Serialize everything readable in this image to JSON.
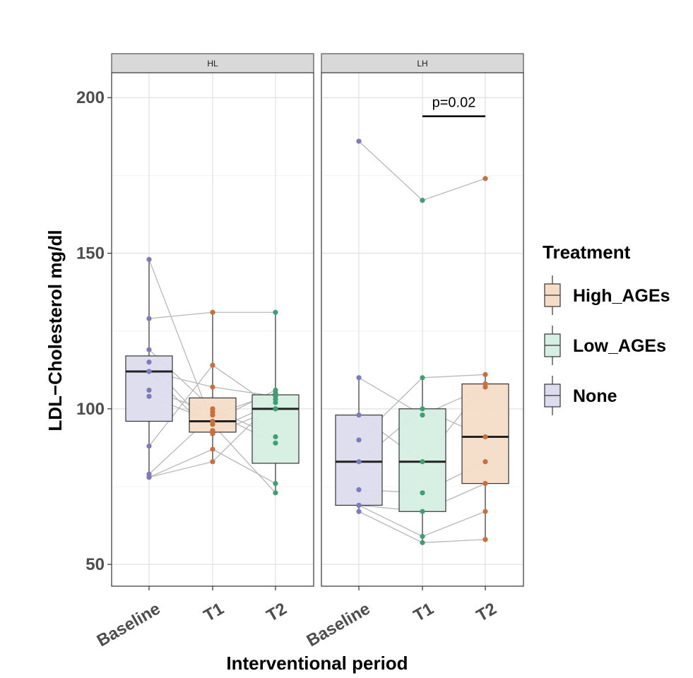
{
  "chart_data": {
    "type": "boxplot",
    "ylabel": "LDL−Cholesterol mg/dl",
    "xlabel": "Interventional period",
    "ylim": [
      43,
      208
    ],
    "yticks": [
      50,
      100,
      150,
      200
    ],
    "categories": [
      "Baseline",
      "T1",
      "T2"
    ],
    "legend": {
      "title": "Treatment",
      "entries": [
        {
          "name": "High_AGEs",
          "fill": "#f4dcc7",
          "point": "#c8703c"
        },
        {
          "name": "Low_AGEs",
          "fill": "#d6efe3",
          "point": "#3f9e73"
        },
        {
          "name": "None",
          "fill": "#dcdcee",
          "point": "#7b7bbd"
        }
      ]
    },
    "panels": [
      {
        "label": "HL",
        "boxes": [
          {
            "category": "Baseline",
            "treatment": "None",
            "lower": 78,
            "q1": 96,
            "median": 112,
            "q3": 117,
            "upper": 148
          },
          {
            "category": "T1",
            "treatment": "High_AGEs",
            "lower": 83,
            "q1": 92.5,
            "median": 96,
            "q3": 103.5,
            "upper": 131
          },
          {
            "category": "T2",
            "treatment": "Low_AGEs",
            "lower": 73,
            "q1": 82.5,
            "median": 100,
            "q3": 104.5,
            "upper": 131
          }
        ],
        "subjects": [
          [
            148,
            95,
            73
          ],
          [
            129,
            131,
            131
          ],
          [
            119,
            100,
            91
          ],
          [
            115,
            93,
            102
          ],
          [
            112,
            107,
            104
          ],
          [
            106,
            99,
            89
          ],
          [
            104,
            96,
            106
          ],
          [
            88,
            114,
            100
          ],
          [
            79,
            98,
            105
          ],
          [
            78,
            87,
            76
          ],
          [
            78,
            83,
            103
          ],
          [
            112,
            92,
            100
          ]
        ],
        "annotation": null
      },
      {
        "label": "LH",
        "boxes": [
          {
            "category": "Baseline",
            "treatment": "None",
            "lower": 67,
            "q1": 69,
            "median": 83,
            "q3": 98,
            "upper": 110
          },
          {
            "category": "T1",
            "treatment": "Low_AGEs",
            "lower": 57,
            "q1": 67,
            "median": 83,
            "q3": 100,
            "upper": 110
          },
          {
            "category": "T2",
            "treatment": "High_AGEs",
            "lower": 58,
            "q1": 76,
            "median": 91,
            "q3": 108,
            "upper": 111
          }
        ],
        "subjects": [
          [
            186,
            167,
            174
          ],
          [
            110,
            98,
            107
          ],
          [
            98,
            83,
            108
          ],
          [
            90,
            110,
            111
          ],
          [
            83,
            100,
            91
          ],
          [
            74,
            73,
            83
          ],
          [
            69,
            59,
            67
          ],
          [
            67,
            57,
            58
          ],
          [
            69,
            67,
            76
          ]
        ],
        "annotation": {
          "text": "p=0.02",
          "from": "T1",
          "to": "T2",
          "y": 194
        }
      }
    ]
  }
}
